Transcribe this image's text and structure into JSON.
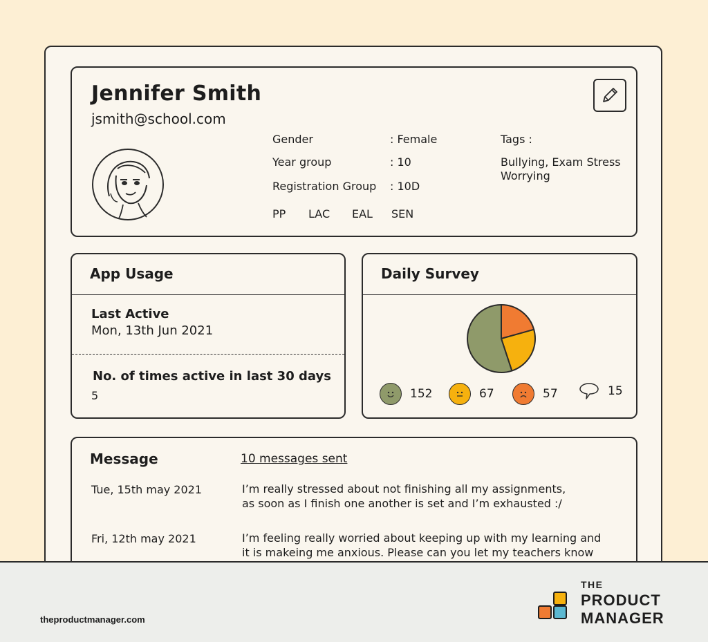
{
  "profile": {
    "name": "Jennifer Smith",
    "email": "jsmith@school.com",
    "fields": [
      {
        "label": "Gender",
        "value": ": Female"
      },
      {
        "label": "Year group",
        "value": ": 10"
      },
      {
        "label": "Registration Group",
        "value": ": 10D"
      }
    ],
    "flags": [
      "PP",
      "LAC",
      "EAL",
      "SEN"
    ],
    "tags_title": "Tags :",
    "tags_line1": "Bullying, Exam Stress",
    "tags_line2": "Worrying"
  },
  "app_usage": {
    "title": "App Usage",
    "last_active_label": "Last Active",
    "last_active_value": "Mon, 13th Jun 2021",
    "times_active_label": "No. of times active in last 30 days",
    "times_active_value": "5"
  },
  "daily_survey": {
    "title": "Daily Survey",
    "stats": [
      {
        "mood": "happy-face-icon",
        "value": "152",
        "color": "#8f9a6a"
      },
      {
        "mood": "neutral-face-icon",
        "value": "67",
        "color": "#f6b10e"
      },
      {
        "mood": "sad-face-icon",
        "value": "57",
        "color": "#f07b32"
      },
      {
        "mood": "speech-bubble-icon",
        "value": "15",
        "color": "#faf6ee"
      }
    ]
  },
  "chart_data": {
    "type": "pie",
    "values": [
      152,
      67,
      57
    ],
    "colors": [
      "#8f9a6a",
      "#f6b10e",
      "#f07b32"
    ]
  },
  "message": {
    "title": "Message",
    "count_label": "10 messages sent",
    "items": [
      {
        "date": "Tue, 15th may 2021",
        "line1": "I’m really stressed about not finishing all my assignments,",
        "line2": "as soon as I finish one another is set and I’m exhausted :/"
      },
      {
        "date": "Fri, 12th may 2021",
        "line1": "I’m feeling really worried about keeping up with my learning and",
        "line2": "it is makeing me anxious. Please can you let my teachers know"
      }
    ]
  },
  "footer": {
    "site": "theproductmanager.com",
    "logo_the": "THE",
    "logo_product": "PRODUCT",
    "logo_manager": "MANAGER"
  }
}
